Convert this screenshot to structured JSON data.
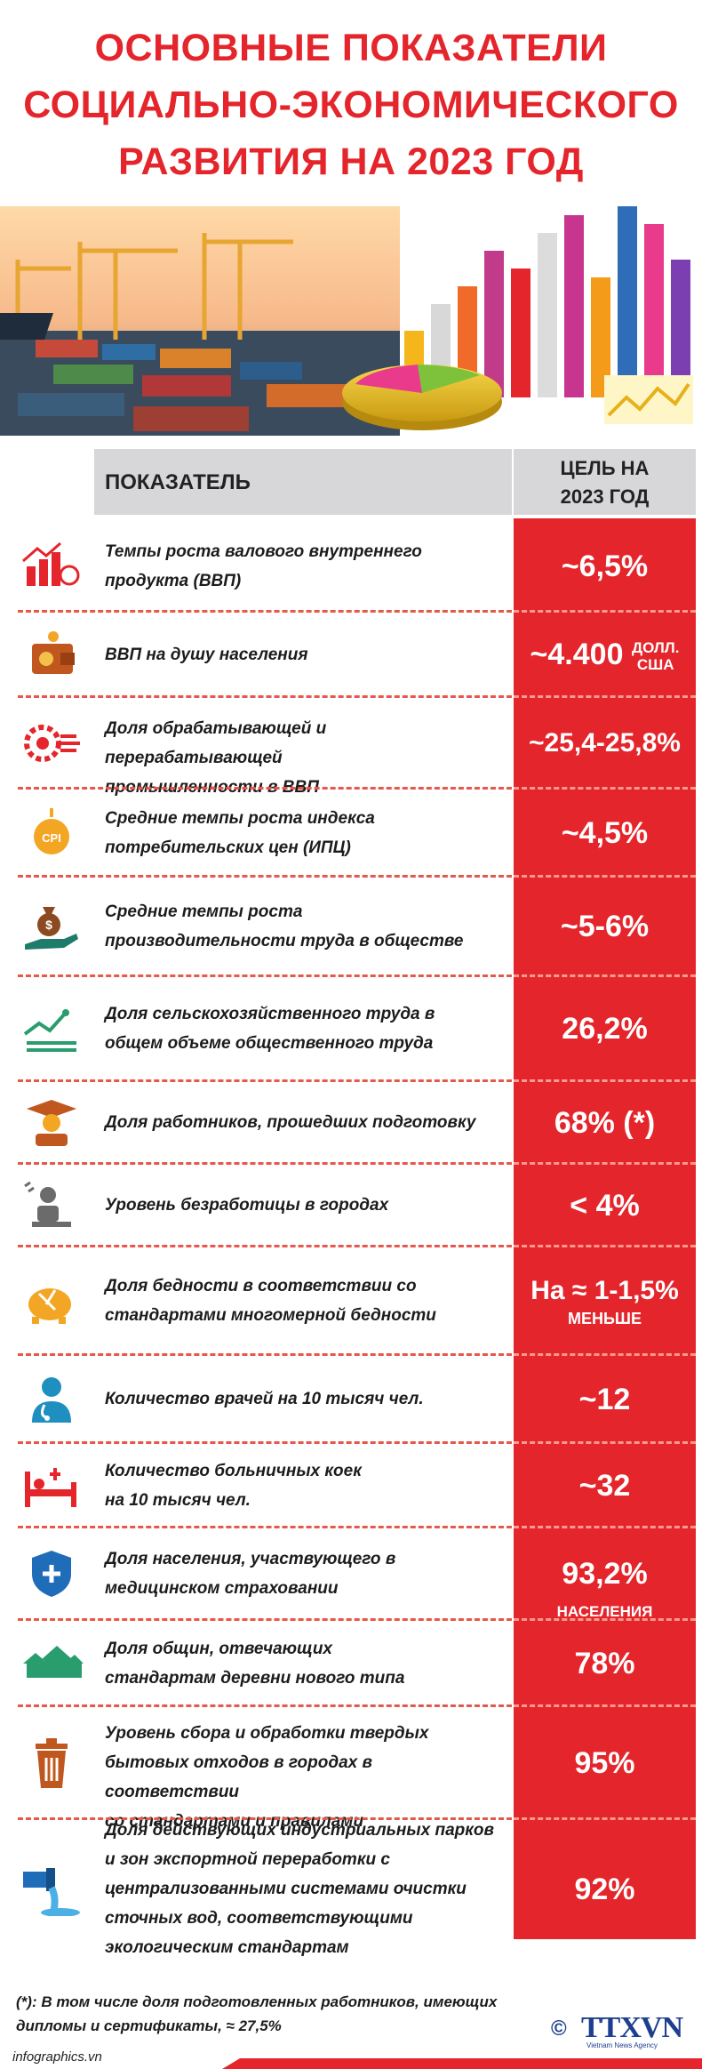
{
  "title": {
    "line1": "ОСНОВНЫЕ ПОКАЗАТЕЛИ",
    "line2": "СОЦИАЛЬНО-ЭКОНОМИЧЕСКОГО",
    "line3": "РАЗВИТИЯ  НА 2023 ГОД"
  },
  "table": {
    "col_indicator": "ПОКАЗАТЕЛЬ",
    "col_goal_line1": "ЦЕЛЬ НА",
    "col_goal_line2": "2023 ГОД"
  },
  "rows": [
    {
      "icon": "gdp-growth-icon",
      "label_lines": [
        "Темпы роста валового внутреннего",
        "продукта (ВВП)"
      ],
      "value": "~6,5%"
    },
    {
      "icon": "wallet-icon",
      "label_lines": [
        "ВВП на душу населения"
      ],
      "value": "~4.400",
      "value_unit_1": "ДОЛЛ.",
      "value_unit_2": "США"
    },
    {
      "icon": "industry-gear-icon",
      "label_lines": [
        "Доля обрабатывающей и перерабатывающей",
        "промышленности в ВВП"
      ],
      "value": "~25,4-25,8%"
    },
    {
      "icon": "cpi-icon",
      "icon_text": "CPI",
      "label_lines": [
        "Средние темпы роста индекса",
        "потребительских цен (ИПЦ)"
      ],
      "value": "~4,5%"
    },
    {
      "icon": "money-bag-hand-icon",
      "label_lines": [
        "Средние темпы роста",
        "производительности труда в обществе"
      ],
      "value": "~5-6%"
    },
    {
      "icon": "agriculture-chart-icon",
      "label_lines": [
        "Доля сельскохозяйственного труда в",
        "общем объеме общественного труда"
      ],
      "value": "26,2%"
    },
    {
      "icon": "graduate-icon",
      "label_lines": [
        "Доля работников, прошедших подготовку"
      ],
      "value": "68% (*)"
    },
    {
      "icon": "unemployed-worker-icon",
      "label_lines": [
        "Уровень безработицы в городах"
      ],
      "value": "< 4%"
    },
    {
      "icon": "poverty-piggy-icon",
      "label_lines": [
        "Доля бедности в соответствии со",
        "стандартами многомерной бедности"
      ],
      "value": "На ≈ 1-1,5%",
      "value_sub": "МЕНЬШЕ"
    },
    {
      "icon": "doctor-icon",
      "label_lines": [
        "Количество врачей на 10 тысяч чел."
      ],
      "value": "~12"
    },
    {
      "icon": "hospital-bed-icon",
      "label_lines": [
        "Количество больничных коек",
        "на 10 тысяч чел."
      ],
      "value": "~32"
    },
    {
      "icon": "health-insurance-icon",
      "label_lines": [
        "Доля населения, участвующего в",
        "медицинском страховании"
      ],
      "value": "93,2%",
      "value_unit_1": "НАСЕЛЕНИЯ"
    },
    {
      "icon": "village-houses-icon",
      "label_lines": [
        "Доля общин, отвечающих",
        "стандартам деревни нового типа"
      ],
      "value": "78%"
    },
    {
      "icon": "trash-bin-icon",
      "label_lines": [
        "Уровень сбора и обработки твердых",
        "бытовых отходов в городах в соответствии",
        "со стандартами и правилами"
      ],
      "value": "95%"
    },
    {
      "icon": "wastewater-pipe-icon",
      "label_lines": [
        "Доля действующих индустриальных парков",
        "и зон экспортной переработки с",
        "централизованными системами очистки",
        "сточных вод, соответствующими",
        "экологическим стандартам"
      ],
      "value": "92%"
    }
  ],
  "footnote": {
    "line1": "(*): В том числе доля подготовленных работников, имеющих",
    "line2": "дипломы и сертификаты, ≈ 27,5%"
  },
  "footer": {
    "site": "infographics.vn",
    "logo_copyright": "©",
    "logo_text": "TTXVN",
    "logo_sub": "Vietnam News Agency"
  },
  "colors": {
    "accent_red": "#e4252b",
    "header_gray": "#d7d7d9",
    "text_dark": "#1c1c1c",
    "logo_blue": "#1d3f8f"
  }
}
